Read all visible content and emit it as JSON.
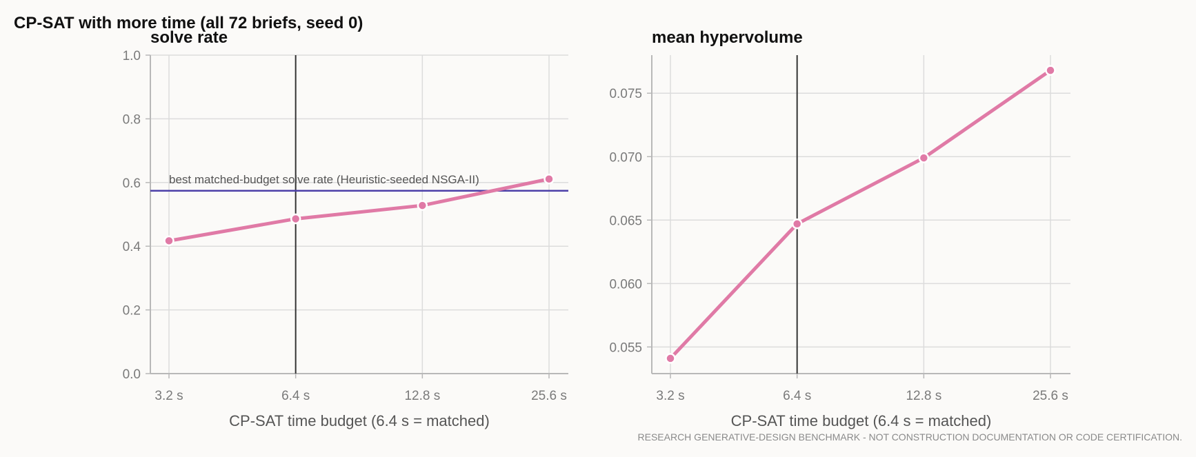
{
  "figure": {
    "title": "CP-SAT with more time (all 72 briefs, seed 0)",
    "footer": "RESEARCH GENERATIVE-DESIGN BENCHMARK - NOT CONSTRUCTION DOCUMENTATION OR CODE CERTIFICATION."
  },
  "colors": {
    "series": "#e07aa6",
    "reference_line": "#4b3fa8",
    "matched_line": "#333333",
    "grid": "#dcdcdc"
  },
  "chart_data": [
    {
      "type": "line",
      "title": "solve rate",
      "xlabel": "CP-SAT time budget (6.4 s = matched)",
      "ylabel": "",
      "categories": [
        "3.2 s",
        "6.4 s",
        "12.8 s",
        "25.6 s"
      ],
      "series": [
        {
          "values": [
            0.417,
            0.486,
            0.528,
            0.611
          ]
        }
      ],
      "ylim": [
        0.0,
        1.0
      ],
      "yticks": [
        0.0,
        0.2,
        0.4,
        0.6,
        0.8,
        1.0
      ],
      "ytick_labels": [
        "0.0",
        "0.2",
        "0.4",
        "0.6",
        "0.8",
        "1.0"
      ],
      "matched_category": "6.4 s",
      "reference": {
        "value": 0.574,
        "label": "best matched-budget solve rate (Heuristic-seeded NSGA-II)"
      },
      "grid": true
    },
    {
      "type": "line",
      "title": "mean hypervolume",
      "xlabel": "CP-SAT time budget (6.4 s = matched)",
      "ylabel": "",
      "categories": [
        "3.2 s",
        "6.4 s",
        "12.8 s",
        "25.6 s"
      ],
      "series": [
        {
          "values": [
            0.0541,
            0.0647,
            0.0699,
            0.0768
          ]
        }
      ],
      "ylim": [
        0.0529,
        0.078
      ],
      "yticks": [
        0.055,
        0.06,
        0.065,
        0.07,
        0.075
      ],
      "ytick_labels": [
        "0.055",
        "0.060",
        "0.065",
        "0.070",
        "0.075"
      ],
      "matched_category": "6.4 s",
      "grid": true
    }
  ]
}
